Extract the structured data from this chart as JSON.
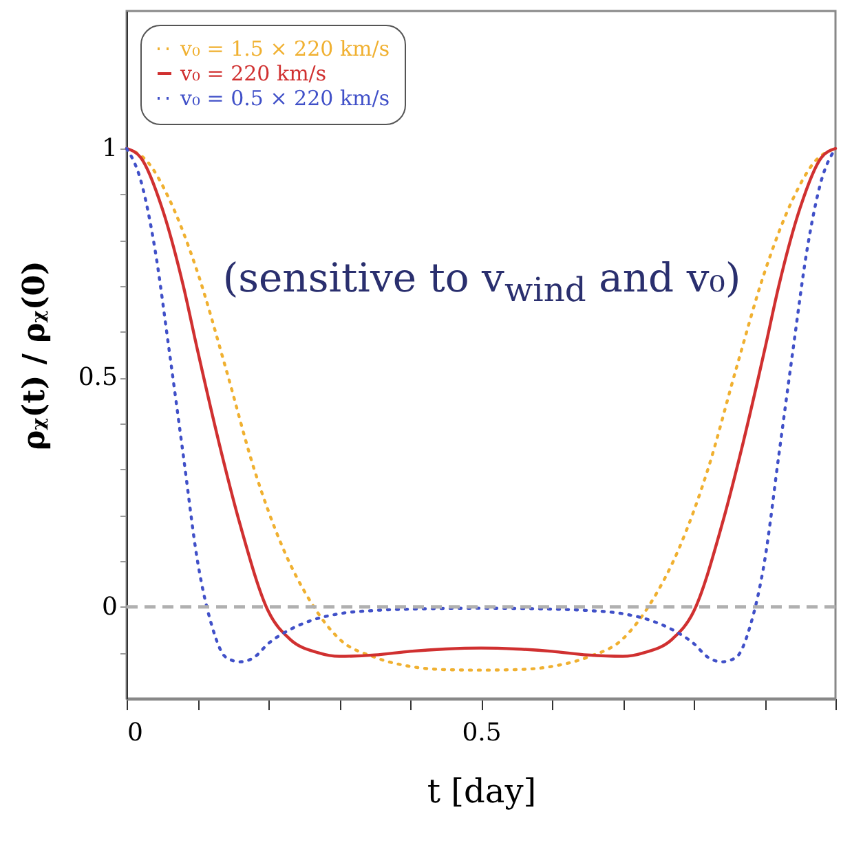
{
  "chart_data": {
    "type": "line",
    "xlabel": "t [day]",
    "ylabel": "ρᵪ(t) / ρᵪ(0)",
    "xlim": [
      0,
      1
    ],
    "ylim": [
      -0.2,
      1.3
    ],
    "xticks": [
      0,
      {
        "value": 0.1,
        "label": null
      },
      {
        "value": 0.2,
        "label": null
      },
      {
        "value": 0.3,
        "label": null
      },
      {
        "value": 0.4,
        "label": null
      },
      0.5,
      {
        "value": 0.6,
        "label": null
      },
      {
        "value": 0.7,
        "label": null
      },
      {
        "value": 0.8,
        "label": null
      },
      {
        "value": 0.9,
        "label": null
      },
      {
        "value": 1,
        "label": null
      }
    ],
    "yticks": [
      {
        "value": -0.1,
        "label": null
      },
      0,
      {
        "value": 0.1,
        "label": null
      },
      {
        "value": 0.2,
        "label": null
      },
      {
        "value": 0.3,
        "label": null
      },
      {
        "value": 0.4,
        "label": null
      },
      0.5,
      {
        "value": 0.6,
        "label": null
      },
      {
        "value": 0.7,
        "label": null
      },
      {
        "value": 0.8,
        "label": null
      },
      {
        "value": 0.9,
        "label": null
      },
      1
    ],
    "grid": false,
    "legend": "top left",
    "marker": "none",
    "ref_lines": [
      {
        "axis": "y",
        "value": 0,
        "label": null,
        "color": "#b0b0b0",
        "line_style": "dashed"
      }
    ],
    "annotations": [
      "(sensitive to v$_{wind}$ and v₀)"
    ],
    "series": [
      {
        "name": "v₀ = 1.5 × 220 km/s",
        "color": "#f0b030",
        "line_style": "dotted",
        "x": [
          0,
          0.03,
          0.06,
          0.1,
          0.14,
          0.18,
          0.22,
          0.26,
          0.3,
          0.35,
          0.4,
          0.45,
          0.5,
          0.55,
          0.6,
          0.65,
          0.7,
          0.74,
          0.78,
          0.82,
          0.86,
          0.9,
          0.94,
          0.97,
          1
        ],
        "values": [
          1,
          0.97,
          0.89,
          0.73,
          0.52,
          0.3,
          0.13,
          0.01,
          -0.07,
          -0.11,
          -0.13,
          -0.137,
          -0.138,
          -0.137,
          -0.13,
          -0.11,
          -0.07,
          0.01,
          0.13,
          0.3,
          0.52,
          0.73,
          0.89,
          0.97,
          1
        ]
      },
      {
        "name": "v₀ = 220 km/s",
        "color": "#d03030",
        "line_style": "solid",
        "x": [
          0,
          0.02,
          0.05,
          0.08,
          0.1,
          0.13,
          0.16,
          0.2,
          0.23,
          0.27,
          0.3,
          0.35,
          0.4,
          0.45,
          0.5,
          0.55,
          0.6,
          0.65,
          0.7,
          0.73,
          0.77,
          0.8,
          0.84,
          0.87,
          0.9,
          0.92,
          0.95,
          0.98,
          1
        ],
        "values": [
          1,
          0.98,
          0.87,
          0.7,
          0.56,
          0.36,
          0.18,
          -0.01,
          -0.07,
          -0.1,
          -0.108,
          -0.105,
          -0.097,
          -0.092,
          -0.09,
          -0.092,
          -0.097,
          -0.105,
          -0.108,
          -0.1,
          -0.07,
          -0.01,
          0.18,
          0.36,
          0.56,
          0.7,
          0.87,
          0.98,
          1
        ]
      },
      {
        "name": "v₀ = 0.5 × 220 km/s",
        "color": "#4050c8",
        "line_style": "dotted",
        "x": [
          0,
          0.02,
          0.04,
          0.06,
          0.08,
          0.1,
          0.12,
          0.14,
          0.16,
          0.18,
          0.2,
          0.23,
          0.26,
          0.3,
          0.35,
          0.4,
          0.5,
          0.6,
          0.65,
          0.7,
          0.74,
          0.77,
          0.8,
          0.82,
          0.84,
          0.86,
          0.88,
          0.9,
          0.92,
          0.94,
          0.96,
          0.98,
          1
        ],
        "values": [
          1,
          0.93,
          0.78,
          0.56,
          0.33,
          0.1,
          -0.04,
          -0.11,
          -0.12,
          -0.11,
          -0.08,
          -0.05,
          -0.03,
          -0.015,
          -0.008,
          -0.005,
          -0.003,
          -0.005,
          -0.008,
          -0.015,
          -0.03,
          -0.05,
          -0.08,
          -0.11,
          -0.12,
          -0.11,
          -0.04,
          0.1,
          0.33,
          0.56,
          0.78,
          0.93,
          1
        ]
      }
    ]
  }
}
